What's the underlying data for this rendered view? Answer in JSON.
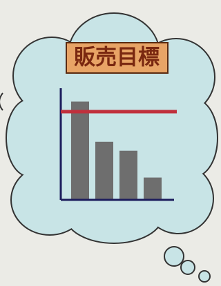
{
  "chart_data": {
    "type": "bar",
    "title": "販売目標",
    "values": [
      88,
      52,
      44,
      20
    ],
    "color": "#6e6e6e",
    "ylim": [
      0,
      100
    ],
    "target": 79,
    "target_color": "#c0303c",
    "axis_color": "#1c1c5c"
  }
}
